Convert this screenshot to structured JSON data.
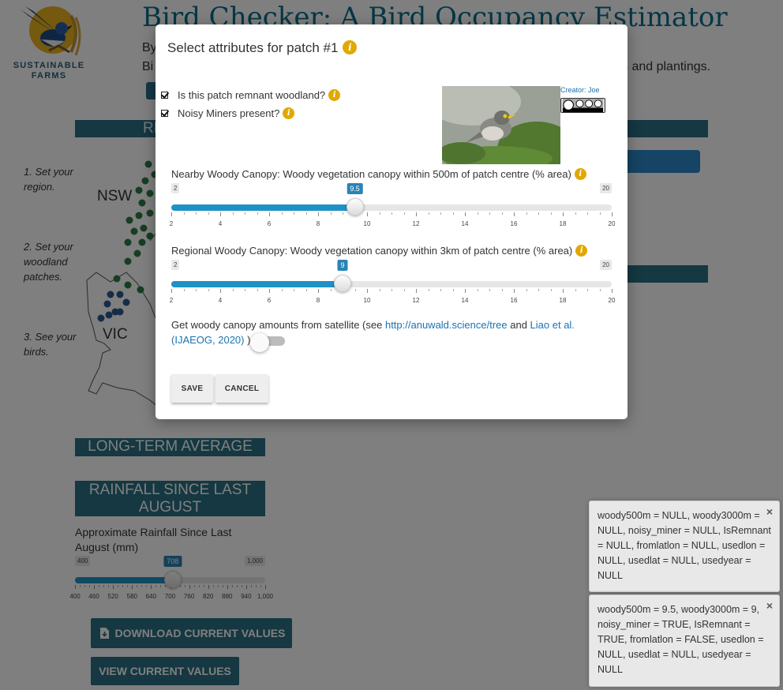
{
  "header": {
    "title": "Bird Checker: A Bird Occupancy Estimator",
    "by_fragment": "By",
    "bi_fragment": "Bi",
    "line2_tail": "s and plantings.",
    "logo_text": "SUSTAINABLE FARMS"
  },
  "region": {
    "band_fragment": "RE",
    "map_labels": {
      "nsw": "NSW",
      "vic": "VIC"
    }
  },
  "steps": [
    "1. Set your region.",
    "2. Set your woodland patches.",
    "3. See your birds."
  ],
  "sections": {
    "long_term": "LONG-TERM AVERAGE",
    "rainfall": "RAINFALL SINCE LAST AUGUST"
  },
  "rainfall_slider": {
    "label": "Approximate Rainfall Since Last August (mm)",
    "min": 400,
    "max": 1000,
    "value": 708,
    "min_label": "400",
    "max_label": "1,000",
    "value_label": "708",
    "tick_labels": [
      "400",
      "460",
      "520",
      "580",
      "640",
      "700",
      "760",
      "820",
      "880",
      "940",
      "1,000"
    ]
  },
  "buttons": {
    "download": "DOWNLOAD CURRENT VALUES",
    "view": "VIEW CURRENT VALUES"
  },
  "modal": {
    "title": "Select attributes for patch #1",
    "remnant_label": "Is this patch remnant woodland?",
    "remnant_checked": true,
    "miners_label": "Noisy Miners present?",
    "miners_checked": true,
    "creator_text": "Creator: Joe",
    "nearby_label": "Nearby Woody Canopy: Woody vegetation canopy within 500m of patch centre (% area)",
    "regional_label": "Regional Woody Canopy: Woody vegetation canopy within 3km of patch centre (% area)",
    "sat_text_before": "Get woody canopy amounts from satellite (see ",
    "sat_link1": "http://anuwald.science/tree",
    "sat_text_and": " and ",
    "sat_link2": "Liao et al. (IJAEOG, 2020)",
    "sat_text_after": " )",
    "satellite_toggle_on": false,
    "save": "SAVE",
    "cancel": "CANCEL"
  },
  "canopy_sliders": {
    "nearby": {
      "min": 2,
      "max": 20,
      "value": 9.5,
      "min_label": "2",
      "max_label": "20",
      "value_label": "9.5",
      "tick_labels": [
        "2",
        "4",
        "6",
        "8",
        "10",
        "12",
        "14",
        "16",
        "18",
        "20"
      ]
    },
    "regional": {
      "min": 2,
      "max": 20,
      "value": 9,
      "min_label": "2",
      "max_label": "20",
      "value_label": "9",
      "tick_labels": [
        "2",
        "4",
        "6",
        "8",
        "10",
        "12",
        "14",
        "16",
        "18",
        "20"
      ]
    }
  },
  "notifications": [
    {
      "text": "woody500m = NULL, woody3000m = NULL, noisy_miner = NULL, IsRemnant = NULL, fromlatlon = NULL, usedlon = NULL, usedlat = NULL, usedyear = NULL",
      "close": "×"
    },
    {
      "text": "woody500m = 9.5, woody3000m = 9, noisy_miner = TRUE, IsRemnant = TRUE, fromlatlon = FALSE, usedlon = NULL, usedlat = NULL, usedyear = NULL",
      "close": "×"
    }
  ],
  "colors": {
    "brand_teal": "#2a7085",
    "title_blue": "#0b6e8a",
    "slider_fill": "#1f92c5",
    "info_yellow": "#e0a800"
  },
  "icons": [
    "info-icon",
    "download-icon",
    "close-icon",
    "bird-logo-icon"
  ]
}
